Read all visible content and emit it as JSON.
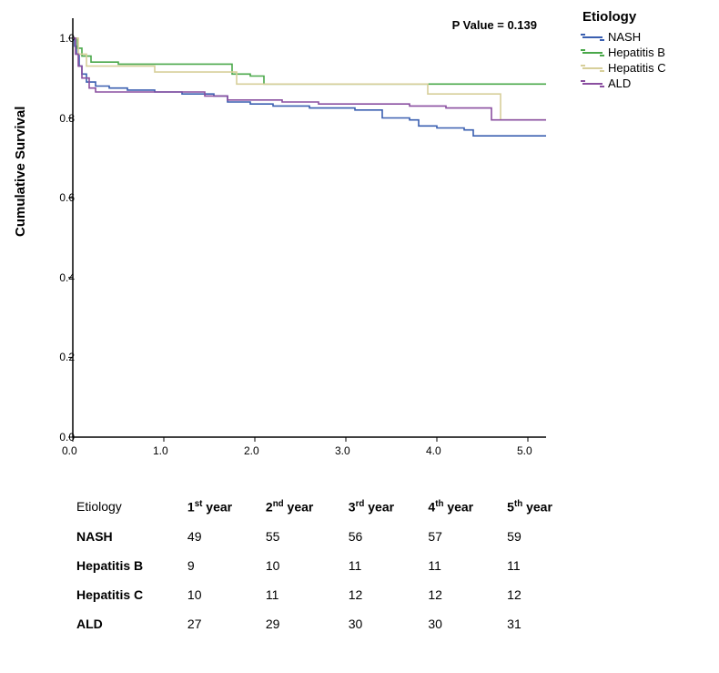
{
  "chart": {
    "type": "kaplan-meier-step",
    "p_value_label": "P Value = 0.139",
    "y_axis_label": "Cumulative Survival",
    "xlim": [
      0,
      5.2
    ],
    "ylim": [
      0,
      1.05
    ],
    "x_ticks": [
      0.0,
      1.0,
      2.0,
      3.0,
      4.0,
      5.0
    ],
    "x_tick_labels": [
      "0.0",
      "1.0",
      "2.0",
      "3.0",
      "4.0",
      "5.0"
    ],
    "y_ticks": [
      0.0,
      0.2,
      0.4,
      0.6,
      0.8,
      1.0
    ],
    "y_tick_labels": [
      "0.0",
      "0.2",
      "0.4",
      "0.6",
      "0.8",
      "1.0"
    ],
    "background_color": "#ffffff",
    "axis_color": "#000000",
    "tick_length": 5,
    "line_width": 1.6,
    "series": [
      {
        "name": "NASH",
        "color": "#3a5fb0",
        "points": [
          [
            0.0,
            1.0
          ],
          [
            0.02,
            0.98
          ],
          [
            0.04,
            0.96
          ],
          [
            0.07,
            0.93
          ],
          [
            0.1,
            0.91
          ],
          [
            0.15,
            0.89
          ],
          [
            0.25,
            0.88
          ],
          [
            0.4,
            0.875
          ],
          [
            0.6,
            0.87
          ],
          [
            0.9,
            0.865
          ],
          [
            1.2,
            0.86
          ],
          [
            1.55,
            0.855
          ],
          [
            1.7,
            0.84
          ],
          [
            1.95,
            0.835
          ],
          [
            2.2,
            0.83
          ],
          [
            2.6,
            0.825
          ],
          [
            3.1,
            0.82
          ],
          [
            3.4,
            0.8
          ],
          [
            3.7,
            0.795
          ],
          [
            3.8,
            0.78
          ],
          [
            4.0,
            0.775
          ],
          [
            4.3,
            0.77
          ],
          [
            4.4,
            0.755
          ],
          [
            5.2,
            0.755
          ]
        ]
      },
      {
        "name": "Hepatitis B",
        "color": "#4aa84a",
        "points": [
          [
            0.0,
            1.0
          ],
          [
            0.05,
            0.975
          ],
          [
            0.1,
            0.955
          ],
          [
            0.2,
            0.94
          ],
          [
            0.5,
            0.935
          ],
          [
            1.6,
            0.935
          ],
          [
            1.75,
            0.91
          ],
          [
            1.95,
            0.905
          ],
          [
            2.1,
            0.885
          ],
          [
            5.2,
            0.885
          ]
        ]
      },
      {
        "name": "Hepatitis C",
        "color": "#d7cf9a",
        "points": [
          [
            0.0,
            1.0
          ],
          [
            0.06,
            0.96
          ],
          [
            0.15,
            0.93
          ],
          [
            0.8,
            0.93
          ],
          [
            0.9,
            0.915
          ],
          [
            1.6,
            0.915
          ],
          [
            1.8,
            0.885
          ],
          [
            3.8,
            0.885
          ],
          [
            3.9,
            0.86
          ],
          [
            4.6,
            0.86
          ],
          [
            4.7,
            0.795
          ],
          [
            5.2,
            0.795
          ]
        ]
      },
      {
        "name": "ALD",
        "color": "#8a4fa0",
        "points": [
          [
            0.0,
            1.0
          ],
          [
            0.03,
            0.96
          ],
          [
            0.06,
            0.93
          ],
          [
            0.1,
            0.9
          ],
          [
            0.18,
            0.875
          ],
          [
            0.25,
            0.865
          ],
          [
            1.3,
            0.865
          ],
          [
            1.45,
            0.855
          ],
          [
            1.7,
            0.845
          ],
          [
            2.3,
            0.84
          ],
          [
            2.7,
            0.835
          ],
          [
            3.7,
            0.83
          ],
          [
            4.1,
            0.825
          ],
          [
            4.5,
            0.825
          ],
          [
            4.6,
            0.795
          ],
          [
            5.2,
            0.795
          ]
        ]
      }
    ]
  },
  "legend": {
    "title": "Etiology",
    "title_fontsize": 15,
    "item_fontsize": 13,
    "items": [
      {
        "label": "NASH",
        "color": "#3a5fb0"
      },
      {
        "label": "Hepatitis B",
        "color": "#4aa84a"
      },
      {
        "label": "Hepatitis C",
        "color": "#d7cf9a"
      },
      {
        "label": "ALD",
        "color": "#8a4fa0"
      }
    ]
  },
  "table": {
    "header_label": "Etiology",
    "columns": [
      {
        "num": "1",
        "suffix": "st",
        "rest": " year"
      },
      {
        "num": "2",
        "suffix": "nd",
        "rest": " year"
      },
      {
        "num": "3",
        "suffix": "rd",
        "rest": " year"
      },
      {
        "num": "4",
        "suffix": "th",
        "rest": " year"
      },
      {
        "num": "5",
        "suffix": "th",
        "rest": " year"
      }
    ],
    "rows": [
      {
        "label": "NASH",
        "values": [
          "49",
          "55",
          "56",
          "57",
          "59"
        ]
      },
      {
        "label": "Hepatitis B",
        "values": [
          "9",
          "10",
          "11",
          "11",
          "11"
        ]
      },
      {
        "label": "Hepatitis C",
        "values": [
          "10",
          "11",
          "12",
          "12",
          "12"
        ]
      },
      {
        "label": "ALD",
        "values": [
          "27",
          "29",
          "30",
          "30",
          "31"
        ]
      }
    ],
    "header_fontsize": 14,
    "cell_fontsize": 14
  }
}
